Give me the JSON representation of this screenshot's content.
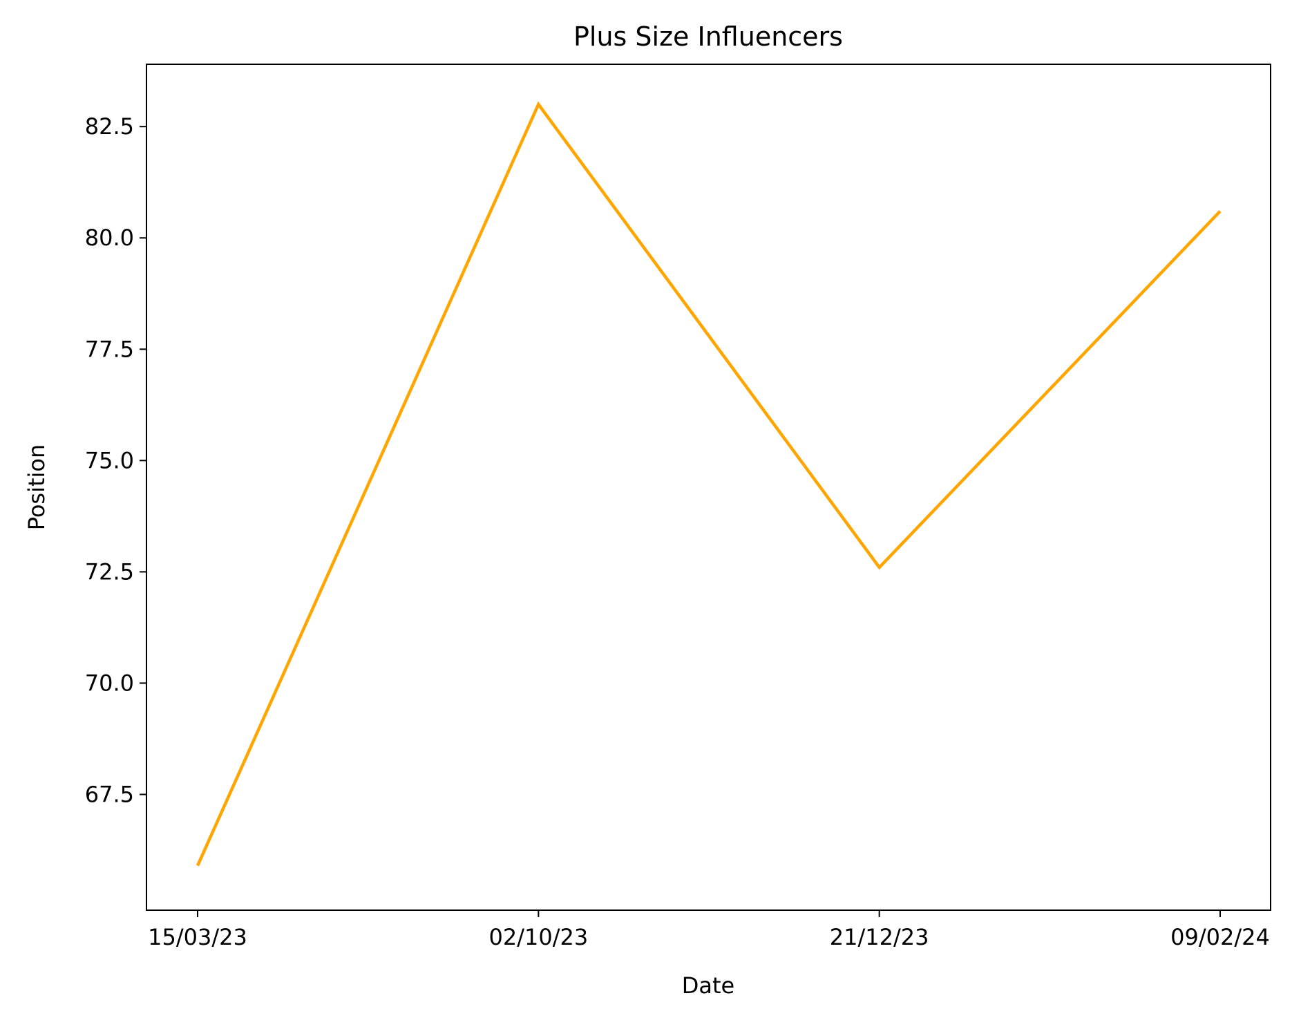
{
  "chart_data": {
    "type": "line",
    "title": "Plus Size Influencers",
    "xlabel": "Date",
    "ylabel": "Position",
    "categories": [
      "15/03/23",
      "02/10/23",
      "21/12/23",
      "09/02/24"
    ],
    "values": [
      65.9,
      83.0,
      72.6,
      80.6
    ],
    "ylim": [
      64.9,
      83.9
    ],
    "yticks": [
      67.5,
      70.0,
      72.5,
      75.0,
      77.5,
      80.0,
      82.5
    ],
    "ytick_labels": [
      "67.5",
      "70.0",
      "72.5",
      "75.0",
      "77.5",
      "80.0",
      "82.5"
    ],
    "line_color": "#ffa500",
    "grid": false,
    "legend": "none"
  }
}
